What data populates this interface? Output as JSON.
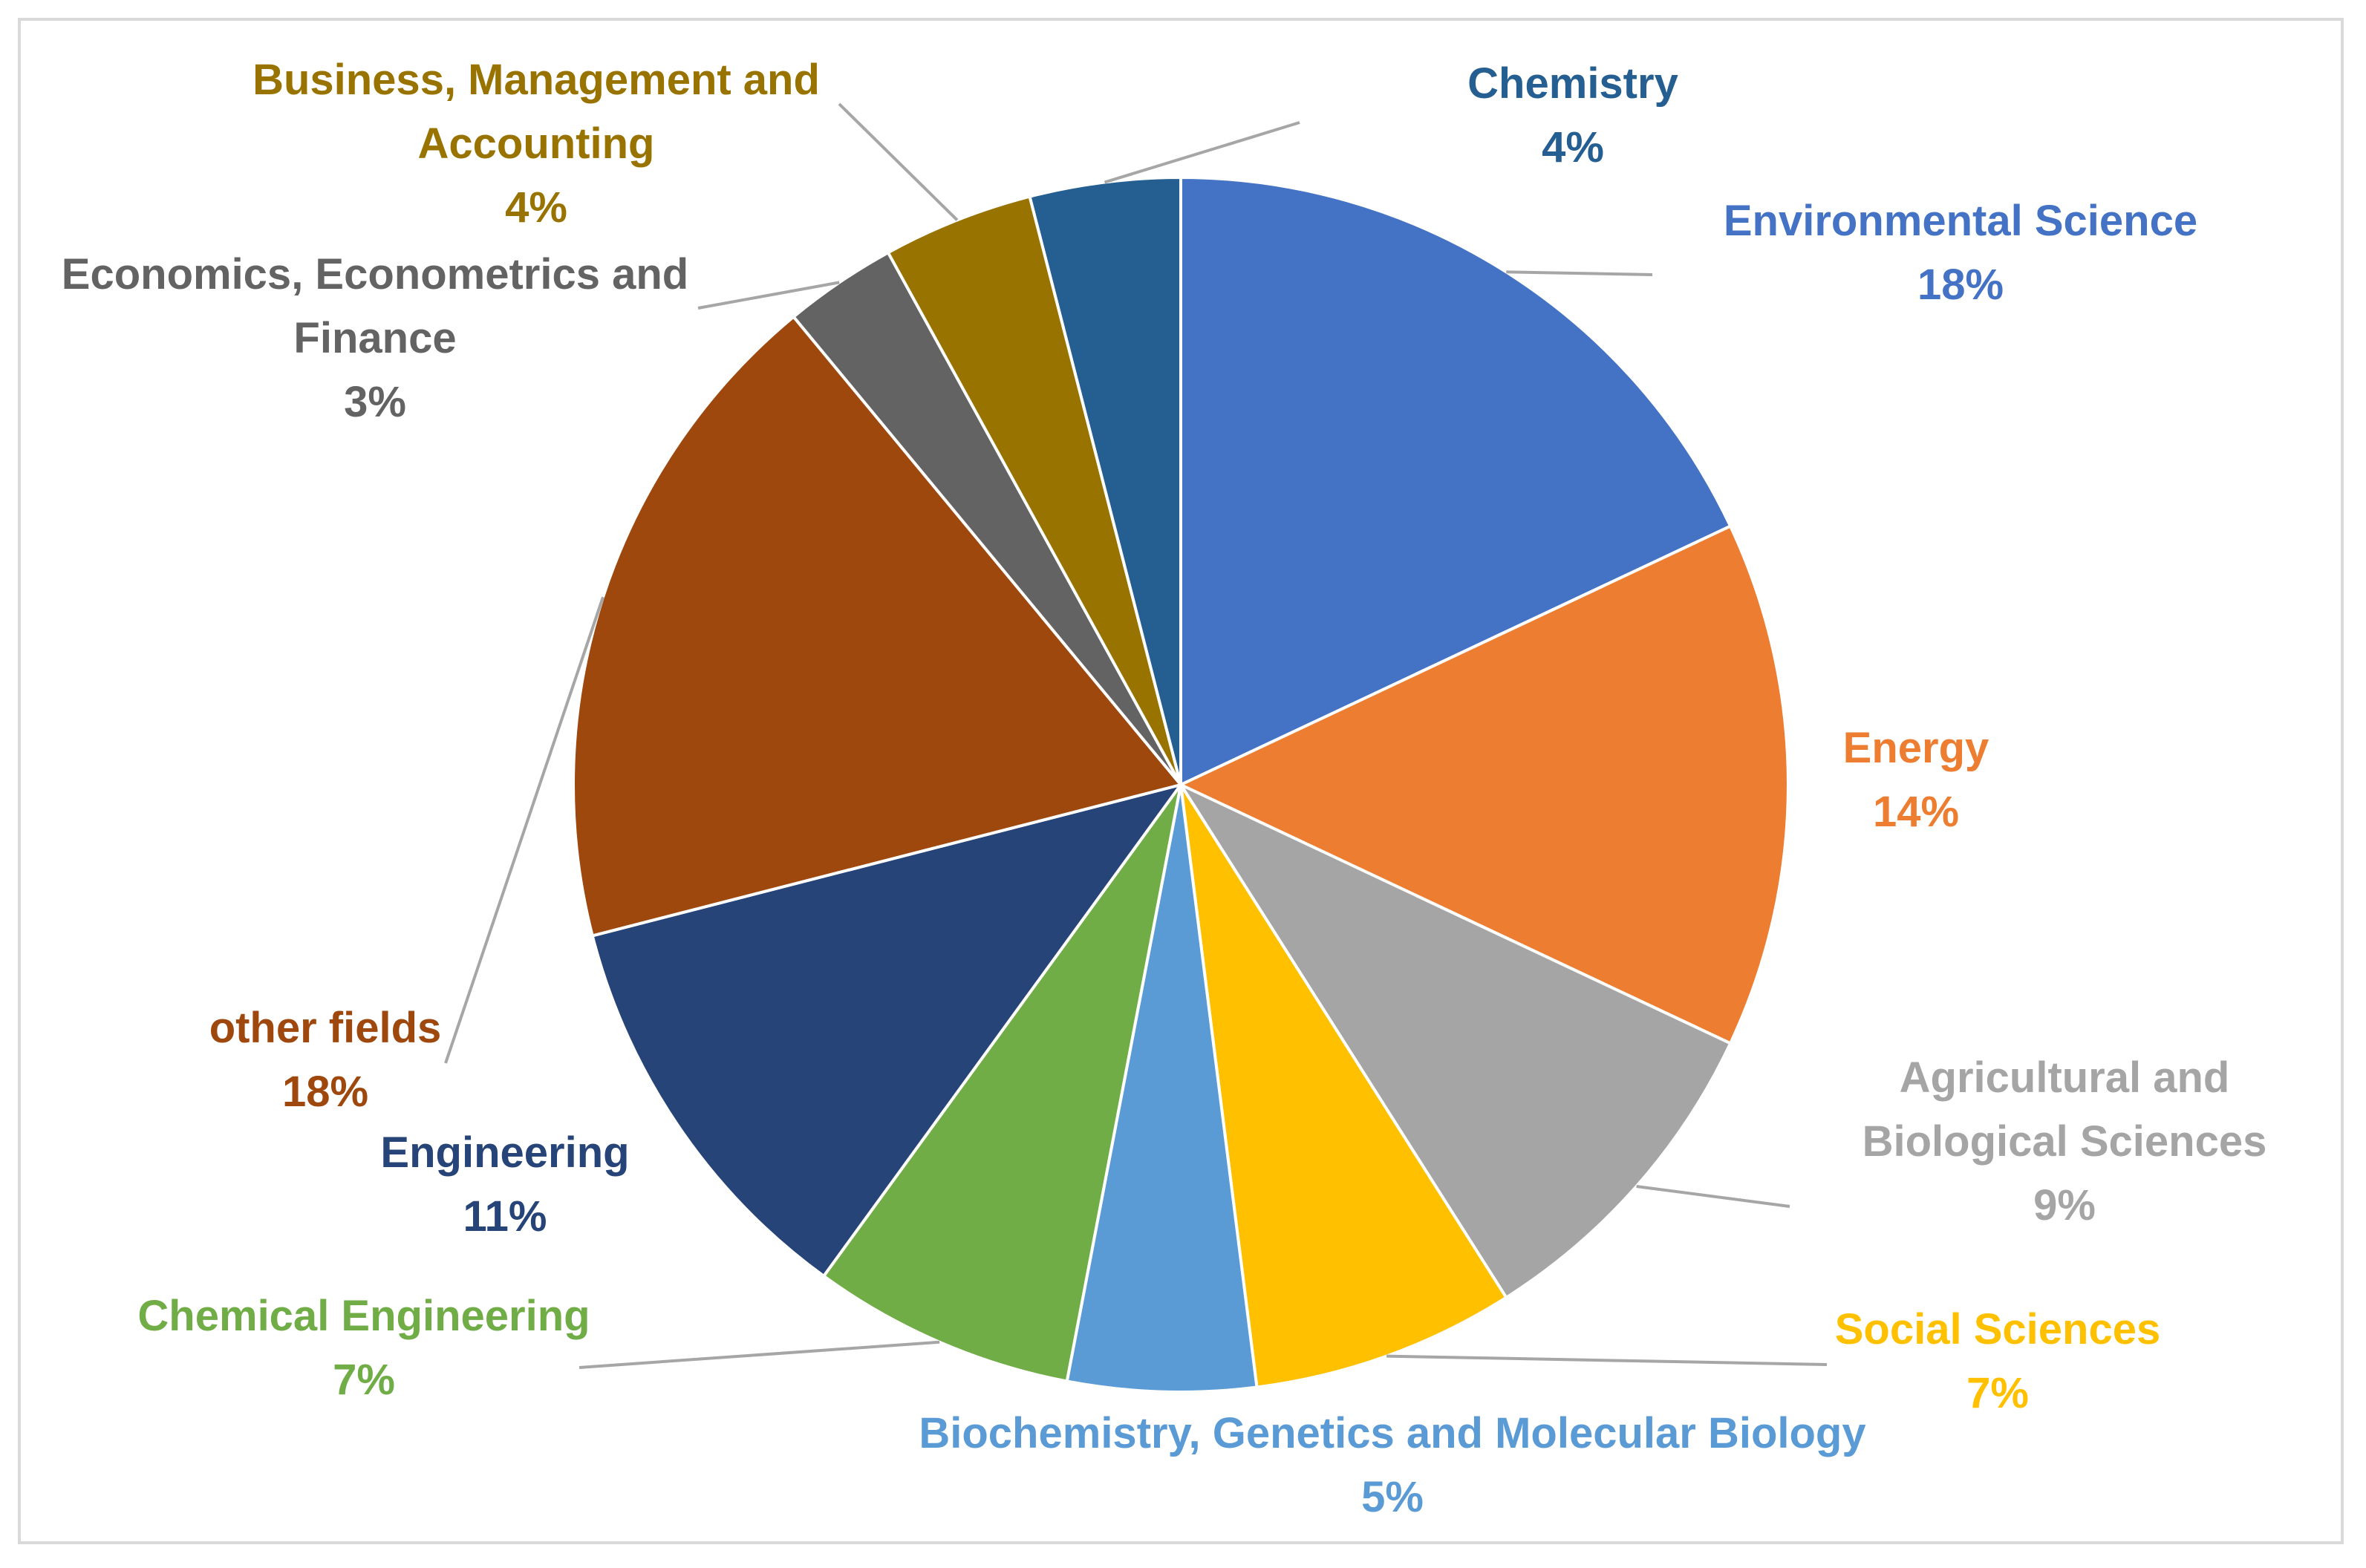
{
  "chart_data": {
    "type": "pie",
    "title": "",
    "start": "12 o'clock",
    "direction": "clockwise",
    "slices": [
      {
        "name": "Environmental Science",
        "lines": [
          "Environmental Science"
        ],
        "value": 18,
        "pct_label": "18%",
        "color": "#4472C4",
        "label_color": "#4472C4"
      },
      {
        "name": "Energy",
        "lines": [
          "Energy"
        ],
        "value": 14,
        "pct_label": "14%",
        "color": "#ED7D31",
        "label_color": "#ED7D31"
      },
      {
        "name": "Agricultural and Biological Sciences",
        "lines": [
          "Agricultural and",
          "Biological Sciences"
        ],
        "value": 9,
        "pct_label": "9%",
        "color": "#A5A5A5",
        "label_color": "#A5A5A5"
      },
      {
        "name": "Social Sciences",
        "lines": [
          "Social Sciences"
        ],
        "value": 7,
        "pct_label": "7%",
        "color": "#FFC000",
        "label_color": "#FFC000"
      },
      {
        "name": "Biochemistry, Genetics and Molecular Biology",
        "lines": [
          "Biochemistry, Genetics and Molecular Biology"
        ],
        "value": 5,
        "pct_label": "5%",
        "color": "#5B9BD5",
        "label_color": "#5B9BD5"
      },
      {
        "name": "Chemical Engineering",
        "lines": [
          "Chemical Engineering"
        ],
        "value": 7,
        "pct_label": "7%",
        "color": "#70AD47",
        "label_color": "#70AD47"
      },
      {
        "name": "Engineering",
        "lines": [
          "Engineering"
        ],
        "value": 11,
        "pct_label": "11%",
        "color": "#264478",
        "label_color": "#264478"
      },
      {
        "name": "other fields",
        "lines": [
          "other fields"
        ],
        "value": 18,
        "pct_label": "18%",
        "color": "#9E480E",
        "label_color": "#9E480E"
      },
      {
        "name": "Economics, Econometrics and Finance",
        "lines": [
          "Economics, Econometrics and",
          "Finance"
        ],
        "value": 3,
        "pct_label": "3%",
        "color": "#636363",
        "label_color": "#636363"
      },
      {
        "name": "Business, Management and Accounting",
        "lines": [
          "Business, Management and",
          "Accounting"
        ],
        "value": 4,
        "pct_label": "4%",
        "color": "#997300",
        "label_color": "#997300"
      },
      {
        "name": "Chemistry",
        "lines": [
          "Chemistry"
        ],
        "value": 4,
        "pct_label": "4%",
        "color": "#255E91",
        "label_color": "#255E91"
      }
    ]
  }
}
